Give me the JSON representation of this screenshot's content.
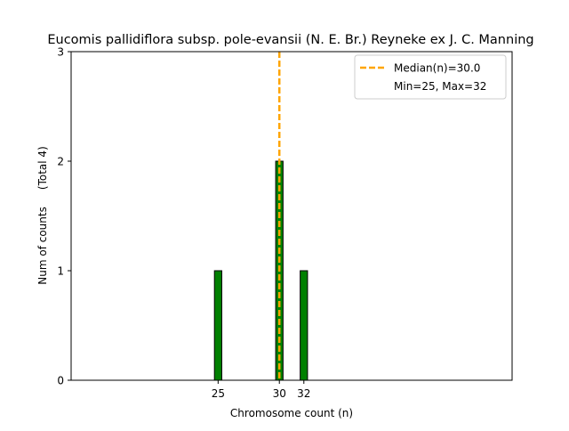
{
  "chart_data": {
    "type": "bar",
    "title": "Eucomis pallidiflora subsp. pole-evansii (N. E. Br.) Reyneke ex J. C. Manning",
    "xlabel": "Chromosome count (n)",
    "ylabel": "Num of counts     (Total 4)",
    "x_ticks": [
      25,
      30,
      32
    ],
    "x_tick_labels": [
      "25",
      "30",
      "32"
    ],
    "y_ticks": [
      0,
      1,
      2,
      3
    ],
    "y_tick_labels": [
      "0",
      "1",
      "2",
      "3"
    ],
    "xlim": [
      13,
      49
    ],
    "ylim": [
      0,
      3
    ],
    "bars": [
      {
        "x": 25,
        "value": 1
      },
      {
        "x": 30,
        "value": 2
      },
      {
        "x": 32,
        "value": 1
      }
    ],
    "bar_color": "#008000",
    "bar_edge_color": "#000000",
    "median": {
      "value": 30.0,
      "label": "Median(n)=30.0",
      "color": "#FFA500",
      "style": "dashed"
    },
    "range_label": "Min=25, Max=32",
    "legend_position": "top-right",
    "grid": false
  }
}
